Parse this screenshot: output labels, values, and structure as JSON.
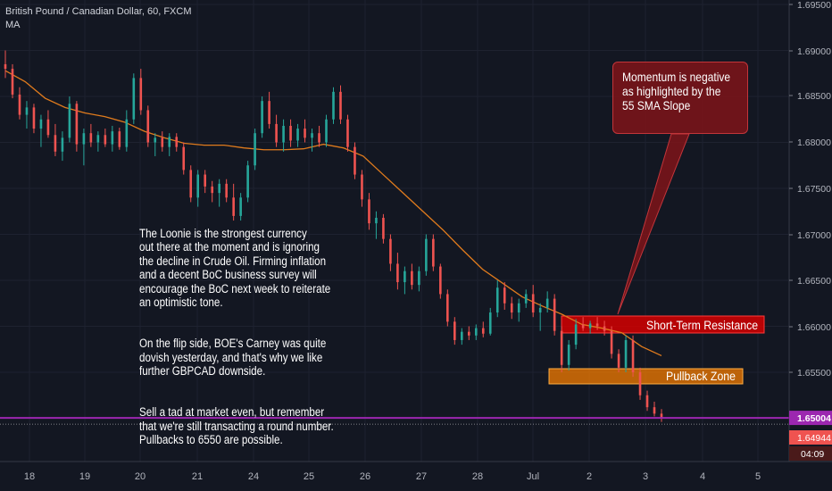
{
  "header": {
    "title": "British Pound / Canadian Dollar, 60, FXCM",
    "indicator": "MA"
  },
  "colors": {
    "background": "#131722",
    "grid": "#1e2230",
    "up": "#26a69a",
    "down": "#ef5350",
    "ma": "#e07b1d",
    "price_line": "#9c27b0",
    "resistance": "#d50000",
    "pullback": "#f57c00"
  },
  "chart_data": {
    "type": "candlestick",
    "ylim": [
      1.644,
      1.695
    ],
    "y_ticks": [
      "1.69500",
      "1.69000",
      "1.68500",
      "1.68000",
      "1.67500",
      "1.67000",
      "1.66500",
      "1.66000",
      "1.65500",
      "1.65004",
      "1.64944"
    ],
    "x_ticks": [
      "18",
      "19",
      "20",
      "21",
      "24",
      "25",
      "26",
      "27",
      "28",
      "Jul",
      "2",
      "3",
      "4",
      "5"
    ],
    "current_price": "1.65004",
    "bid_price": "1.64944",
    "countdown": "04:09",
    "series": [
      {
        "name": "MA",
        "points": [
          [
            0,
            1.6878
          ],
          [
            10,
            1.6866
          ],
          [
            20,
            1.6848
          ],
          [
            30,
            1.6838
          ],
          [
            40,
            1.6832
          ],
          [
            50,
            1.6828
          ],
          [
            60,
            1.6822
          ],
          [
            70,
            1.6812
          ],
          [
            80,
            1.6805
          ],
          [
            90,
            1.6799
          ],
          [
            100,
            1.6797
          ],
          [
            110,
            1.6797
          ],
          [
            120,
            1.6794
          ],
          [
            130,
            1.6792
          ],
          [
            140,
            1.6792
          ],
          [
            150,
            1.6793
          ],
          [
            160,
            1.6798
          ],
          [
            170,
            1.6794
          ],
          [
            180,
            1.6785
          ],
          [
            190,
            1.6765
          ],
          [
            200,
            1.6745
          ],
          [
            210,
            1.6725
          ],
          [
            220,
            1.6705
          ],
          [
            230,
            1.6683
          ],
          [
            240,
            1.6662
          ],
          [
            250,
            1.6647
          ],
          [
            260,
            1.6632
          ],
          [
            270,
            1.6622
          ],
          [
            280,
            1.6613
          ],
          [
            290,
            1.6602
          ],
          [
            300,
            1.6598
          ],
          [
            310,
            1.6593
          ],
          [
            320,
            1.6578
          ],
          [
            330,
            1.6568
          ]
        ]
      }
    ],
    "candles": [
      {
        "t": 0,
        "o": 1.6885,
        "h": 1.69,
        "l": 1.687,
        "c": 1.688
      },
      {
        "t": 2,
        "o": 1.688,
        "h": 1.6885,
        "l": 1.6848,
        "c": 1.6852
      },
      {
        "t": 4,
        "o": 1.6852,
        "h": 1.686,
        "l": 1.6825,
        "c": 1.683
      },
      {
        "t": 6,
        "o": 1.683,
        "h": 1.6845,
        "l": 1.6815,
        "c": 1.6838
      },
      {
        "t": 8,
        "o": 1.6838,
        "h": 1.6842,
        "l": 1.681,
        "c": 1.6815
      },
      {
        "t": 10,
        "o": 1.6815,
        "h": 1.683,
        "l": 1.6795,
        "c": 1.6825
      },
      {
        "t": 12,
        "o": 1.6825,
        "h": 1.6835,
        "l": 1.6805,
        "c": 1.6808
      },
      {
        "t": 14,
        "o": 1.6808,
        "h": 1.682,
        "l": 1.6785,
        "c": 1.679
      },
      {
        "t": 16,
        "o": 1.679,
        "h": 1.6812,
        "l": 1.678,
        "c": 1.6805
      },
      {
        "t": 18,
        "o": 1.6805,
        "h": 1.685,
        "l": 1.68,
        "c": 1.6842
      },
      {
        "t": 20,
        "o": 1.6842,
        "h": 1.6845,
        "l": 1.679,
        "c": 1.6798
      },
      {
        "t": 22,
        "o": 1.6798,
        "h": 1.6815,
        "l": 1.6775,
        "c": 1.681
      },
      {
        "t": 24,
        "o": 1.681,
        "h": 1.682,
        "l": 1.6795,
        "c": 1.68
      },
      {
        "t": 26,
        "o": 1.68,
        "h": 1.6812,
        "l": 1.679,
        "c": 1.6808
      },
      {
        "t": 28,
        "o": 1.6808,
        "h": 1.6815,
        "l": 1.6795,
        "c": 1.6798
      },
      {
        "t": 30,
        "o": 1.6798,
        "h": 1.6818,
        "l": 1.679,
        "c": 1.6812
      },
      {
        "t": 32,
        "o": 1.6812,
        "h": 1.6816,
        "l": 1.6792,
        "c": 1.6795
      },
      {
        "t": 34,
        "o": 1.6795,
        "h": 1.6835,
        "l": 1.679,
        "c": 1.6825
      },
      {
        "t": 36,
        "o": 1.6825,
        "h": 1.6875,
        "l": 1.682,
        "c": 1.687
      },
      {
        "t": 38,
        "o": 1.687,
        "h": 1.688,
        "l": 1.683,
        "c": 1.6835
      },
      {
        "t": 40,
        "o": 1.6835,
        "h": 1.684,
        "l": 1.6795,
        "c": 1.68
      },
      {
        "t": 42,
        "o": 1.68,
        "h": 1.681,
        "l": 1.6785,
        "c": 1.6805
      },
      {
        "t": 44,
        "o": 1.6805,
        "h": 1.6812,
        "l": 1.679,
        "c": 1.6795
      },
      {
        "t": 46,
        "o": 1.6795,
        "h": 1.681,
        "l": 1.6785,
        "c": 1.6806
      },
      {
        "t": 48,
        "o": 1.6806,
        "h": 1.681,
        "l": 1.679,
        "c": 1.6795
      },
      {
        "t": 50,
        "o": 1.6795,
        "h": 1.68,
        "l": 1.6765,
        "c": 1.677
      },
      {
        "t": 52,
        "o": 1.677,
        "h": 1.6775,
        "l": 1.6735,
        "c": 1.674
      },
      {
        "t": 54,
        "o": 1.674,
        "h": 1.677,
        "l": 1.673,
        "c": 1.6765
      },
      {
        "t": 56,
        "o": 1.6765,
        "h": 1.677,
        "l": 1.6745,
        "c": 1.6752
      },
      {
        "t": 58,
        "o": 1.6752,
        "h": 1.6758,
        "l": 1.6735,
        "c": 1.6745
      },
      {
        "t": 60,
        "o": 1.6745,
        "h": 1.676,
        "l": 1.673,
        "c": 1.6755
      },
      {
        "t": 62,
        "o": 1.6755,
        "h": 1.676,
        "l": 1.6735,
        "c": 1.674
      },
      {
        "t": 64,
        "o": 1.674,
        "h": 1.6755,
        "l": 1.6715,
        "c": 1.672
      },
      {
        "t": 66,
        "o": 1.672,
        "h": 1.6745,
        "l": 1.6715,
        "c": 1.674
      },
      {
        "t": 68,
        "o": 1.674,
        "h": 1.678,
        "l": 1.6735,
        "c": 1.6775
      },
      {
        "t": 70,
        "o": 1.6775,
        "h": 1.6815,
        "l": 1.677,
        "c": 1.681
      },
      {
        "t": 72,
        "o": 1.681,
        "h": 1.685,
        "l": 1.6805,
        "c": 1.6845
      },
      {
        "t": 74,
        "o": 1.6845,
        "h": 1.6855,
        "l": 1.6815,
        "c": 1.682
      },
      {
        "t": 76,
        "o": 1.682,
        "h": 1.683,
        "l": 1.6795,
        "c": 1.68
      },
      {
        "t": 78,
        "o": 1.68,
        "h": 1.6825,
        "l": 1.679,
        "c": 1.6818
      },
      {
        "t": 80,
        "o": 1.6818,
        "h": 1.6825,
        "l": 1.6795,
        "c": 1.6802
      },
      {
        "t": 82,
        "o": 1.6802,
        "h": 1.682,
        "l": 1.6795,
        "c": 1.6815
      },
      {
        "t": 84,
        "o": 1.6815,
        "h": 1.6825,
        "l": 1.68,
        "c": 1.6805
      },
      {
        "t": 86,
        "o": 1.6805,
        "h": 1.6815,
        "l": 1.679,
        "c": 1.681
      },
      {
        "t": 88,
        "o": 1.681,
        "h": 1.6818,
        "l": 1.6795,
        "c": 1.68
      },
      {
        "t": 90,
        "o": 1.68,
        "h": 1.683,
        "l": 1.6795,
        "c": 1.6825
      },
      {
        "t": 92,
        "o": 1.6825,
        "h": 1.686,
        "l": 1.682,
        "c": 1.6855
      },
      {
        "t": 94,
        "o": 1.6855,
        "h": 1.6862,
        "l": 1.682,
        "c": 1.6825
      },
      {
        "t": 96,
        "o": 1.6825,
        "h": 1.683,
        "l": 1.679,
        "c": 1.6795
      },
      {
        "t": 98,
        "o": 1.6795,
        "h": 1.68,
        "l": 1.676,
        "c": 1.6765
      },
      {
        "t": 100,
        "o": 1.6765,
        "h": 1.677,
        "l": 1.673,
        "c": 1.6738
      },
      {
        "t": 102,
        "o": 1.6738,
        "h": 1.6745,
        "l": 1.6705,
        "c": 1.6712
      },
      {
        "t": 104,
        "o": 1.6712,
        "h": 1.6725,
        "l": 1.6695,
        "c": 1.6718
      },
      {
        "t": 106,
        "o": 1.6718,
        "h": 1.6722,
        "l": 1.669,
        "c": 1.6695
      },
      {
        "t": 108,
        "o": 1.6695,
        "h": 1.67,
        "l": 1.666,
        "c": 1.6668
      },
      {
        "t": 110,
        "o": 1.6668,
        "h": 1.668,
        "l": 1.664,
        "c": 1.6648
      },
      {
        "t": 112,
        "o": 1.6648,
        "h": 1.6665,
        "l": 1.6635,
        "c": 1.666
      },
      {
        "t": 114,
        "o": 1.666,
        "h": 1.6668,
        "l": 1.664,
        "c": 1.6645
      },
      {
        "t": 116,
        "o": 1.6645,
        "h": 1.6665,
        "l": 1.6638,
        "c": 1.666
      },
      {
        "t": 118,
        "o": 1.666,
        "h": 1.67,
        "l": 1.6655,
        "c": 1.6695
      },
      {
        "t": 120,
        "o": 1.6695,
        "h": 1.67,
        "l": 1.666,
        "c": 1.6665
      },
      {
        "t": 122,
        "o": 1.6665,
        "h": 1.6668,
        "l": 1.663,
        "c": 1.6635
      },
      {
        "t": 124,
        "o": 1.6635,
        "h": 1.664,
        "l": 1.66,
        "c": 1.6605
      },
      {
        "t": 126,
        "o": 1.6605,
        "h": 1.661,
        "l": 1.658,
        "c": 1.6585
      },
      {
        "t": 128,
        "o": 1.6585,
        "h": 1.6598,
        "l": 1.658,
        "c": 1.6594
      },
      {
        "t": 130,
        "o": 1.6594,
        "h": 1.66,
        "l": 1.6585,
        "c": 1.659
      },
      {
        "t": 132,
        "o": 1.659,
        "h": 1.6602,
        "l": 1.6585,
        "c": 1.6598
      },
      {
        "t": 134,
        "o": 1.6598,
        "h": 1.6605,
        "l": 1.6588,
        "c": 1.6592
      },
      {
        "t": 136,
        "o": 1.6592,
        "h": 1.662,
        "l": 1.659,
        "c": 1.6615
      },
      {
        "t": 138,
        "o": 1.6615,
        "h": 1.665,
        "l": 1.661,
        "c": 1.6642
      },
      {
        "t": 140,
        "o": 1.6642,
        "h": 1.6648,
        "l": 1.6618,
        "c": 1.6625
      },
      {
        "t": 142,
        "o": 1.6625,
        "h": 1.6632,
        "l": 1.6608,
        "c": 1.6615
      },
      {
        "t": 144,
        "o": 1.6615,
        "h": 1.663,
        "l": 1.6605,
        "c": 1.6625
      },
      {
        "t": 146,
        "o": 1.6625,
        "h": 1.664,
        "l": 1.662,
        "c": 1.6635
      },
      {
        "t": 148,
        "o": 1.6635,
        "h": 1.6645,
        "l": 1.661,
        "c": 1.6615
      },
      {
        "t": 150,
        "o": 1.6615,
        "h": 1.6625,
        "l": 1.6595,
        "c": 1.662
      },
      {
        "t": 152,
        "o": 1.662,
        "h": 1.6638,
        "l": 1.6615,
        "c": 1.663
      },
      {
        "t": 154,
        "o": 1.663,
        "h": 1.6635,
        "l": 1.659,
        "c": 1.6595
      },
      {
        "t": 156,
        "o": 1.6595,
        "h": 1.66,
        "l": 1.655,
        "c": 1.6558
      },
      {
        "t": 158,
        "o": 1.6558,
        "h": 1.6585,
        "l": 1.6552,
        "c": 1.658
      },
      {
        "t": 160,
        "o": 1.658,
        "h": 1.6608,
        "l": 1.6575,
        "c": 1.6602
      },
      {
        "t": 162,
        "o": 1.6602,
        "h": 1.661,
        "l": 1.6595,
        "c": 1.6598
      },
      {
        "t": 164,
        "o": 1.6598,
        "h": 1.6606,
        "l": 1.6592,
        "c": 1.6603
      },
      {
        "t": 166,
        "o": 1.6603,
        "h": 1.661,
        "l": 1.6596,
        "c": 1.66
      },
      {
        "t": 168,
        "o": 1.66,
        "h": 1.6606,
        "l": 1.659,
        "c": 1.6595
      },
      {
        "t": 170,
        "o": 1.6595,
        "h": 1.66,
        "l": 1.6565,
        "c": 1.657
      },
      {
        "t": 172,
        "o": 1.657,
        "h": 1.6575,
        "l": 1.655,
        "c": 1.6555
      },
      {
        "t": 174,
        "o": 1.6555,
        "h": 1.659,
        "l": 1.655,
        "c": 1.6585
      },
      {
        "t": 176,
        "o": 1.6585,
        "h": 1.659,
        "l": 1.6545,
        "c": 1.655
      },
      {
        "t": 178,
        "o": 1.655,
        "h": 1.6555,
        "l": 1.652,
        "c": 1.6525
      },
      {
        "t": 180,
        "o": 1.6525,
        "h": 1.653,
        "l": 1.6508,
        "c": 1.6512
      },
      {
        "t": 182,
        "o": 1.6512,
        "h": 1.6518,
        "l": 1.6502,
        "c": 1.6505
      },
      {
        "t": 184,
        "o": 1.6505,
        "h": 1.651,
        "l": 1.6496,
        "c": 1.65
      }
    ],
    "annotations": [
      {
        "label": "Short-Term Resistance",
        "y1": 1.6595,
        "y2": 1.6605,
        "t1": 158,
        "t2": 265
      },
      {
        "label": "Pullback Zone",
        "y1": 1.654,
        "y2": 1.655,
        "t1": 155,
        "t2": 258
      }
    ]
  },
  "notes": {
    "main": [
      "The Loonie is the strongest currency\nout there at the moment and is ignoring\nthe decline in Crude Oil. Firming inflation\n and a decent BoC business survey will\nencourage the BoC next week to  reiterate\nan optimistic tone.",
      "On the flip side, BOE's Carney was quite\ndovish yesterday, and that's why we like\nfurther GBPCAD downside.",
      "Sell a tad at market even, but remember\nthat we're still transacting a round number.\nPullbacks to 6550 are possible."
    ],
    "callout": "Momentum is negative\nas highlighted by the\n55 SMA Slope"
  }
}
